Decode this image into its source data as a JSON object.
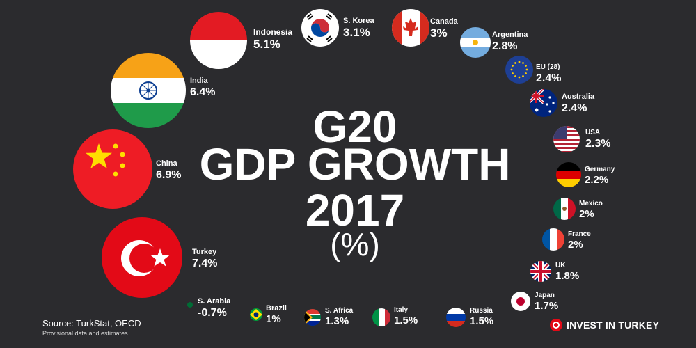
{
  "title": {
    "line1": "G20",
    "line2": "GDP GROWTH",
    "line3": "2017",
    "unit": "(%)"
  },
  "footer": {
    "source": "Source: TurkStat, OECD",
    "note": "Provisional data and estimates",
    "brand": "INVEST IN TURKEY"
  },
  "colors": {
    "background": "#2b2b2e",
    "brand_red": "#e30a17"
  },
  "chart_data": {
    "type": "bubble",
    "categories": [
      "Indonesia",
      "S. Korea",
      "Canada",
      "Argentina",
      "EU (28)",
      "Australia",
      "USA",
      "Germany",
      "Mexico",
      "France",
      "UK",
      "Japan",
      "Russia",
      "Italy",
      "S. Africa",
      "Brazil",
      "S. Arabia",
      "Turkey",
      "China",
      "India"
    ],
    "values": [
      5.1,
      3.1,
      3,
      2.8,
      2.4,
      2.4,
      2.3,
      2.2,
      2,
      2,
      1.8,
      1.7,
      1.5,
      1.5,
      1.3,
      1,
      -0.7,
      7.4,
      6.9,
      6.4
    ],
    "value_labels": [
      "5.1%",
      "3.1%",
      "3%",
      "2.8%",
      "2.4%",
      "2.4%",
      "2.3%",
      "2.2%",
      "2%",
      "2%",
      "1.8%",
      "1.7%",
      "1.5%",
      "1.5%",
      "1.3%",
      "1%",
      "-0.7%",
      "7.4%",
      "6.9%",
      "6.4%"
    ],
    "flags": [
      "indonesia-flag",
      "south-korea-flag",
      "canada-flag",
      "argentina-flag",
      "eu-flag",
      "australia-flag",
      "usa-flag",
      "germany-flag",
      "mexico-flag",
      "france-flag",
      "uk-flag",
      "japan-flag",
      "russia-flag",
      "italy-flag",
      "south-africa-flag",
      "brazil-flag",
      "saudi-arabia-flag",
      "turkey-flag",
      "china-flag",
      "india-flag"
    ]
  }
}
